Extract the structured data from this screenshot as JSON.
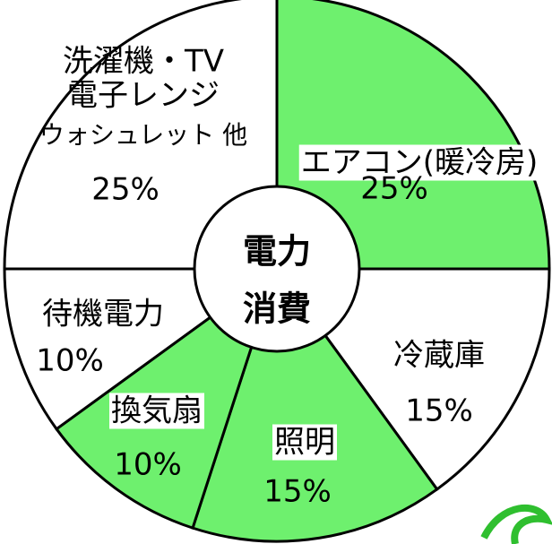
{
  "chart_data": {
    "type": "pie",
    "center_label": [
      "電力",
      "消費"
    ],
    "categories": [
      [
        "エアコン(暖冷房)"
      ],
      [
        "冷蔵庫"
      ],
      [
        "照明"
      ],
      [
        "換気扇"
      ],
      [
        "待機電力"
      ],
      [
        "洗濯機・TV",
        "電子レンジ",
        "ウォシュレット 他"
      ]
    ],
    "values": [
      25,
      15,
      15,
      10,
      10,
      25
    ],
    "value_labels": [
      "25%",
      "15%",
      "15%",
      "10%",
      "10%",
      "25%"
    ],
    "colors": [
      "#6ef06e",
      "#ffffff",
      "#6ef06e",
      "#6ef06e",
      "#ffffff",
      "#ffffff"
    ]
  }
}
